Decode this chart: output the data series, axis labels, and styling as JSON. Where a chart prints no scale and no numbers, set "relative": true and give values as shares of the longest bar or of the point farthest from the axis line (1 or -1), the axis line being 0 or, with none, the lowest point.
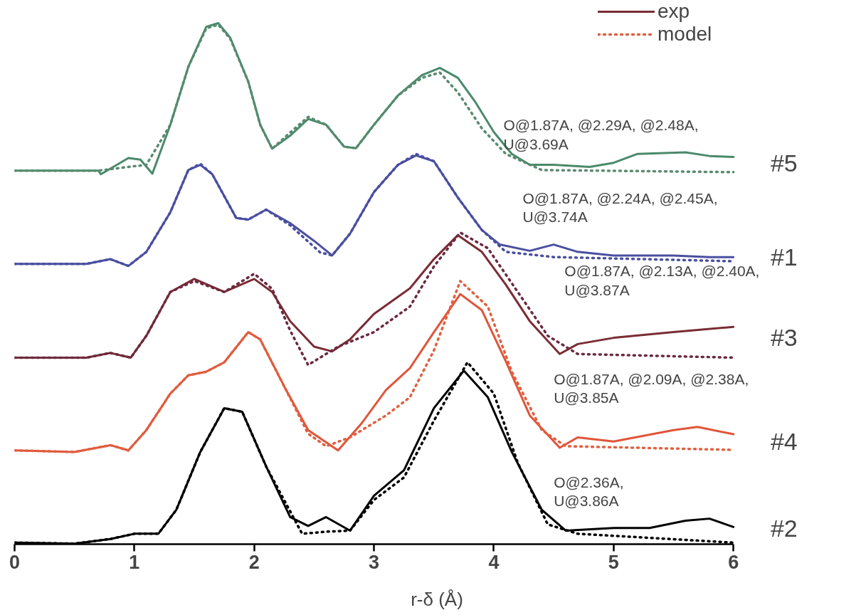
{
  "chart_data": {
    "type": "line",
    "relative": true,
    "xlabel": "r-δ (Å)",
    "xlim": [
      0,
      6
    ],
    "xticks": [
      0,
      1,
      2,
      3,
      4,
      5,
      6
    ],
    "legend": "top right",
    "grid": false,
    "series": [
      {
        "color": "#4a8a6a",
        "line_style": "solid",
        "x": [
          0,
          0.7,
          0.72,
          0.95,
          1.05,
          1.15,
          1.3,
          1.45,
          1.6,
          1.7,
          1.8,
          1.95,
          2.05,
          2.15,
          2.3,
          2.45,
          2.6,
          2.75,
          2.85,
          3.0,
          3.2,
          3.4,
          3.55,
          3.7,
          3.85,
          4.0,
          4.15,
          4.3,
          4.5,
          4.8,
          5.0,
          5.2,
          5.6,
          5.8,
          6
        ],
        "values": [
          0.717,
          0.717,
          0.71,
          0.741,
          0.738,
          0.711,
          0.805,
          0.916,
          0.993,
          1.0,
          0.972,
          0.888,
          0.805,
          0.759,
          0.784,
          0.816,
          0.805,
          0.763,
          0.76,
          0.805,
          0.861,
          0.9,
          0.914,
          0.895,
          0.847,
          0.791,
          0.749,
          0.728,
          0.728,
          0.724,
          0.732,
          0.749,
          0.752,
          0.745,
          0.743
        ]
      },
      {
        "color": "#5a8a70",
        "line_style": "dotted",
        "x": [
          0,
          0.7,
          0.95,
          1.1,
          1.3,
          1.45,
          1.6,
          1.7,
          1.8,
          1.95,
          2.05,
          2.15,
          2.3,
          2.45,
          2.6,
          2.75,
          2.85,
          3.0,
          3.2,
          3.4,
          3.55,
          3.7,
          3.9,
          4.1,
          4.4,
          6
        ],
        "values": [
          0.717,
          0.717,
          0.724,
          0.728,
          0.805,
          0.916,
          0.99,
          0.997,
          0.97,
          0.888,
          0.805,
          0.759,
          0.79,
          0.82,
          0.805,
          0.763,
          0.76,
          0.805,
          0.861,
          0.895,
          0.905,
          0.867,
          0.798,
          0.749,
          0.718,
          0.714
        ]
      },
      {
        "color": "#4a4fa0",
        "line_style": "solid",
        "x": [
          0,
          0.6,
          0.8,
          0.95,
          1.1,
          1.3,
          1.45,
          1.55,
          1.65,
          1.85,
          1.95,
          2.1,
          2.3,
          2.5,
          2.65,
          2.8,
          3.0,
          3.2,
          3.35,
          3.5,
          3.7,
          3.9,
          4.05,
          4.3,
          4.5,
          4.7,
          5.0,
          5.5,
          5.8,
          6
        ],
        "values": [
          0.538,
          0.538,
          0.547,
          0.534,
          0.561,
          0.637,
          0.718,
          0.728,
          0.71,
          0.626,
          0.623,
          0.642,
          0.616,
          0.582,
          0.554,
          0.596,
          0.676,
          0.728,
          0.746,
          0.735,
          0.665,
          0.603,
          0.575,
          0.563,
          0.575,
          0.561,
          0.554,
          0.554,
          0.551,
          0.551
        ]
      },
      {
        "color": "#4a4fa0",
        "line_style": "dotted",
        "x": [
          0,
          0.6,
          0.8,
          0.95,
          1.1,
          1.3,
          1.45,
          1.55,
          1.65,
          1.85,
          1.95,
          2.1,
          2.3,
          2.55,
          2.65,
          2.8,
          3.0,
          3.2,
          3.35,
          3.5,
          3.7,
          3.9,
          4.1,
          4.5,
          6
        ],
        "values": [
          0.538,
          0.538,
          0.547,
          0.534,
          0.561,
          0.637,
          0.718,
          0.73,
          0.71,
          0.626,
          0.623,
          0.642,
          0.612,
          0.56,
          0.554,
          0.596,
          0.676,
          0.728,
          0.749,
          0.735,
          0.665,
          0.603,
          0.561,
          0.551,
          0.543
        ]
      },
      {
        "name": "exp",
        "color": "#7a2c35",
        "line_style": "solid",
        "x": [
          0,
          0.6,
          0.8,
          0.97,
          1.1,
          1.3,
          1.5,
          1.75,
          2.0,
          2.15,
          2.3,
          2.5,
          2.65,
          2.8,
          3.0,
          3.3,
          3.5,
          3.7,
          3.9,
          4.1,
          4.3,
          4.55,
          4.7,
          5.0,
          5.5,
          6
        ],
        "values": [
          0.358,
          0.358,
          0.367,
          0.358,
          0.4,
          0.484,
          0.509,
          0.484,
          0.509,
          0.484,
          0.428,
          0.379,
          0.37,
          0.393,
          0.442,
          0.491,
          0.547,
          0.593,
          0.561,
          0.498,
          0.428,
          0.365,
          0.384,
          0.396,
          0.407,
          0.417
        ]
      },
      {
        "color": "#6a2a40",
        "line_style": "dotted",
        "x": [
          0,
          0.6,
          0.8,
          0.97,
          1.1,
          1.3,
          1.5,
          1.75,
          2.0,
          2.15,
          2.3,
          2.45,
          2.7,
          3.0,
          3.3,
          3.5,
          3.72,
          3.95,
          4.2,
          4.45,
          4.7,
          6
        ],
        "values": [
          0.358,
          0.358,
          0.367,
          0.358,
          0.4,
          0.484,
          0.505,
          0.484,
          0.519,
          0.49,
          0.41,
          0.344,
          0.379,
          0.407,
          0.456,
          0.533,
          0.598,
          0.568,
          0.484,
          0.4,
          0.365,
          0.358
        ]
      },
      {
        "color": "#e0553a",
        "line_style": "solid",
        "x": [
          0,
          0.5,
          0.8,
          0.95,
          1.1,
          1.3,
          1.45,
          1.6,
          1.75,
          1.95,
          2.05,
          2.25,
          2.45,
          2.7,
          2.9,
          3.1,
          3.3,
          3.5,
          3.72,
          3.9,
          4.1,
          4.3,
          4.55,
          4.7,
          5.0,
          5.5,
          5.7,
          6
        ],
        "values": [
          0.18,
          0.177,
          0.19,
          0.18,
          0.219,
          0.289,
          0.324,
          0.331,
          0.349,
          0.407,
          0.393,
          0.303,
          0.219,
          0.18,
          0.233,
          0.296,
          0.338,
          0.407,
          0.48,
          0.449,
          0.351,
          0.247,
          0.185,
          0.205,
          0.197,
          0.219,
          0.225,
          0.211
        ]
      },
      {
        "name": "model",
        "color": "#e06040",
        "line_style": "dotted",
        "x": [
          0,
          0.5,
          0.8,
          0.95,
          1.1,
          1.3,
          1.45,
          1.6,
          1.75,
          1.95,
          2.05,
          2.25,
          2.45,
          2.6,
          2.8,
          3.1,
          3.3,
          3.5,
          3.72,
          3.95,
          4.15,
          4.4,
          4.6,
          6
        ],
        "values": [
          0.18,
          0.177,
          0.19,
          0.18,
          0.219,
          0.289,
          0.324,
          0.331,
          0.349,
          0.407,
          0.393,
          0.303,
          0.212,
          0.188,
          0.205,
          0.247,
          0.282,
          0.372,
          0.505,
          0.456,
          0.331,
          0.219,
          0.188,
          0.181
        ]
      },
      {
        "color": "#000000",
        "line_style": "solid",
        "x": [
          0,
          0.5,
          0.8,
          1.0,
          1.2,
          1.35,
          1.55,
          1.75,
          1.9,
          2.1,
          2.3,
          2.45,
          2.6,
          2.8,
          3.0,
          3.25,
          3.5,
          3.75,
          3.95,
          4.15,
          4.4,
          4.6,
          5.0,
          5.3,
          5.6,
          5.8,
          6
        ],
        "values": [
          0.003,
          0.001,
          0.01,
          0.02,
          0.02,
          0.066,
          0.177,
          0.261,
          0.254,
          0.149,
          0.052,
          0.035,
          0.052,
          0.026,
          0.093,
          0.142,
          0.261,
          0.333,
          0.282,
          0.177,
          0.066,
          0.026,
          0.031,
          0.031,
          0.045,
          0.049,
          0.033
        ]
      },
      {
        "color": "#000000",
        "line_style": "dotted",
        "x": [
          0,
          0.5,
          0.8,
          1.0,
          1.2,
          1.35,
          1.55,
          1.75,
          1.9,
          2.1,
          2.4,
          2.6,
          2.8,
          3.0,
          3.25,
          3.5,
          3.78,
          4.0,
          4.2,
          4.45,
          4.7,
          6
        ],
        "values": [
          0.003,
          0.001,
          0.01,
          0.02,
          0.02,
          0.066,
          0.177,
          0.261,
          0.254,
          0.149,
          0.02,
          0.024,
          0.026,
          0.085,
          0.128,
          0.237,
          0.349,
          0.289,
          0.156,
          0.038,
          0.02,
          0.003
        ]
      }
    ],
    "annotations": [
      "O@1.87A, @2.29A, @2.48A,\nU@3.69A",
      "#5",
      "O@1.87A, @2.24A, @2.45A,\nU@3.74A",
      "#1",
      "O@1.87A, @2.13A, @2.40A,\nU@3.87A",
      "#3",
      "O@1.87A, @2.09A, @2.38A,\nU@3.85A",
      "#4",
      "O@2.36A,\nU@3.86A",
      "#2"
    ]
  }
}
